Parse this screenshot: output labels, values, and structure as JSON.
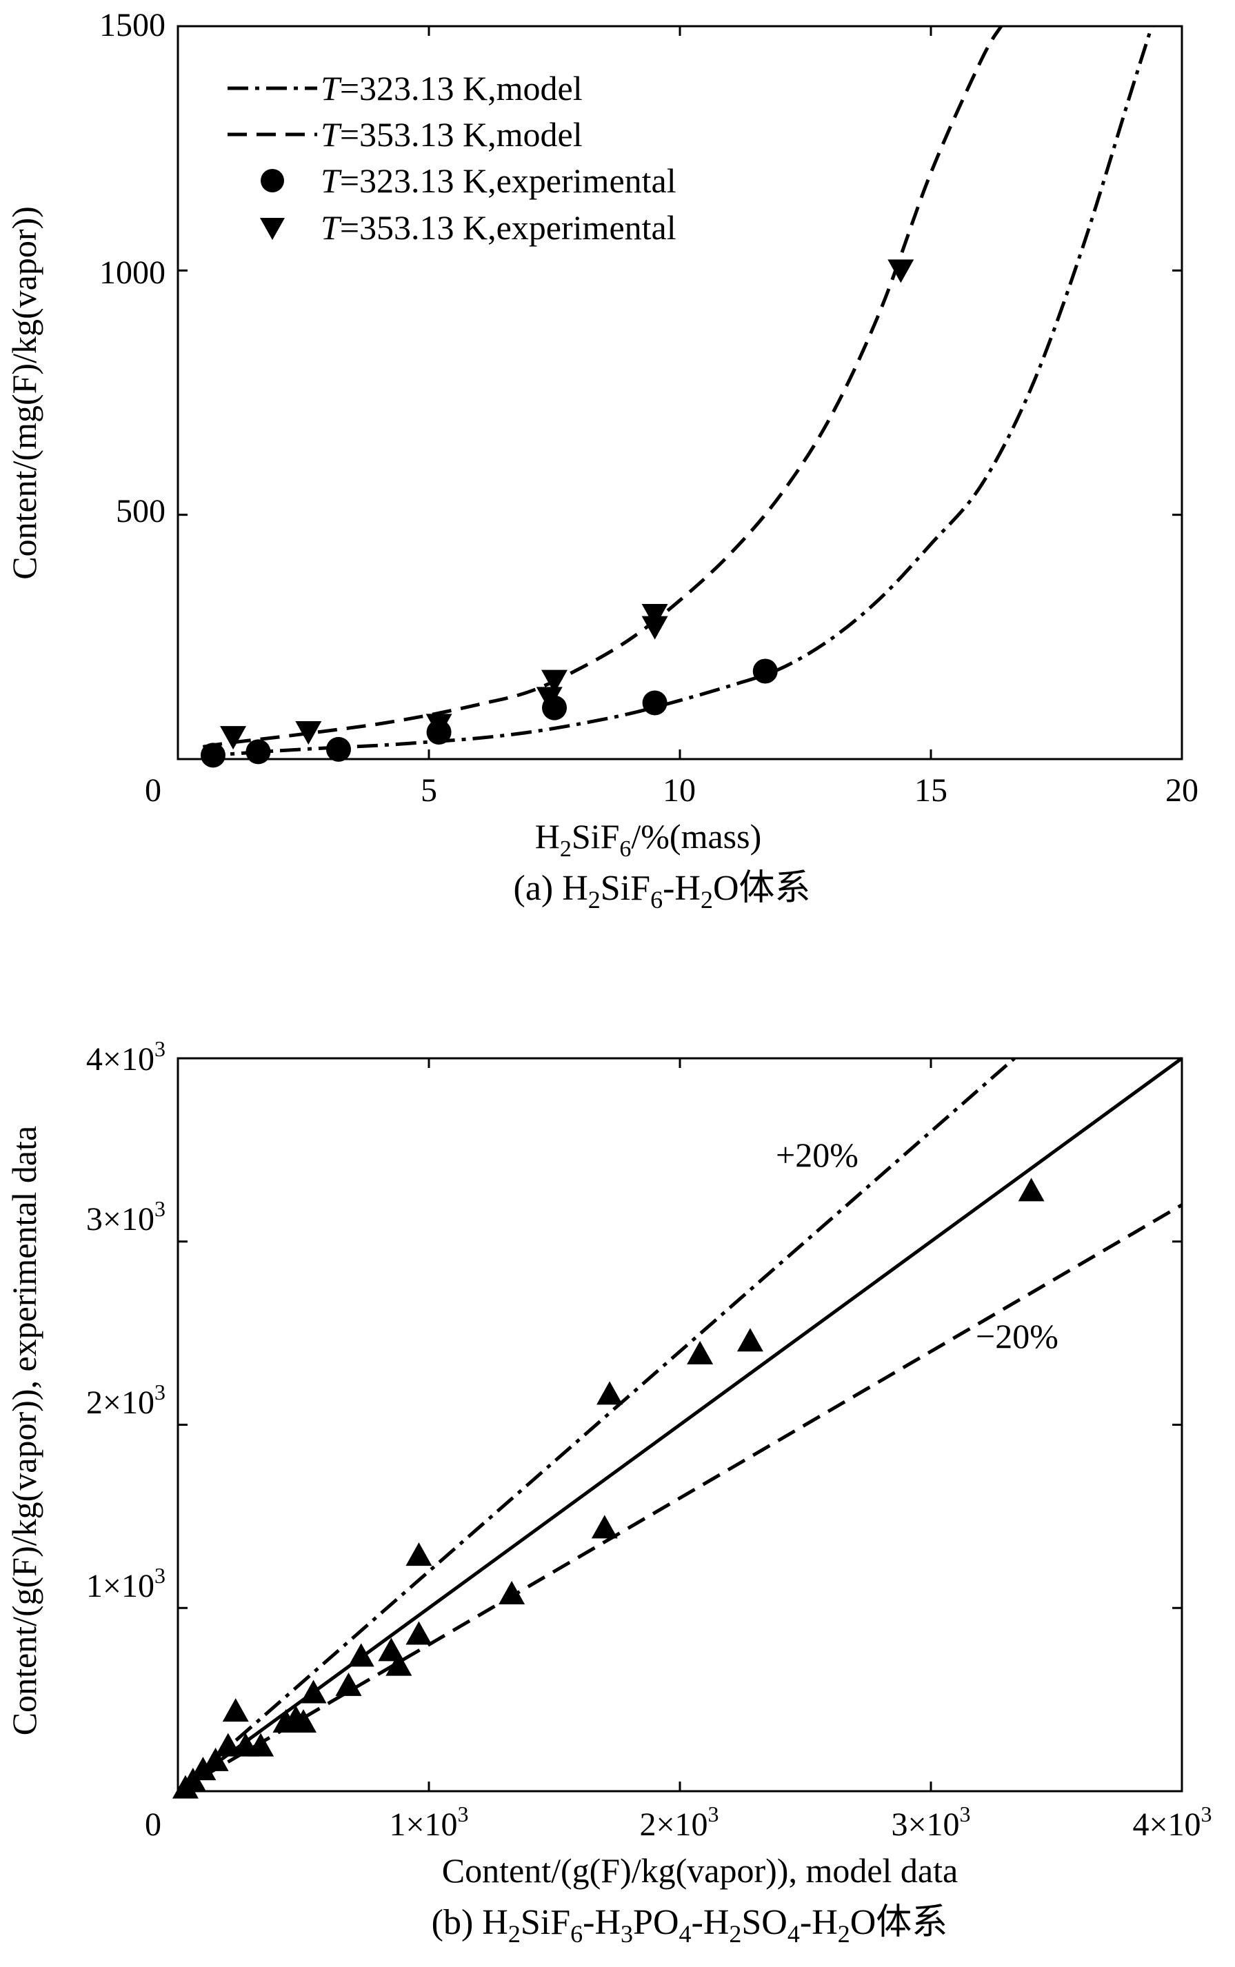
{
  "colors": {
    "ink": "#000000",
    "background": "#ffffff"
  },
  "chart_data": [
    {
      "id": "a",
      "type": "scatter",
      "caption": "(a) H₂SiF₆-H₂O体系",
      "xlabel": "H₂SiF₆/%(mass)",
      "ylabel": "Content/(mg(F)/kg(vapor))",
      "xlim": [
        0,
        20
      ],
      "ylim": [
        0,
        1500
      ],
      "xticks": [
        0,
        5,
        10,
        15,
        20
      ],
      "yticks": [
        500,
        1000,
        1500
      ],
      "xtick_labels": [
        "0",
        "5",
        "10",
        "15",
        "20"
      ],
      "ytick_labels": [
        "500",
        "1000",
        "1500"
      ],
      "legend_position": "top-left",
      "legend": [
        {
          "italic": "T",
          "text": "=323.13 K,model",
          "style": "dashdot"
        },
        {
          "italic": "T",
          "text": "=353.13 K,model",
          "style": "dashed"
        },
        {
          "italic": "T",
          "text": "=323.13 K,experimental",
          "style": "circle"
        },
        {
          "italic": "T",
          "text": "=353.13 K,experimental",
          "style": "triangle-down"
        }
      ],
      "series": [
        {
          "kind": "line",
          "style": "dashdot",
          "x": [
            0.5,
            1,
            2,
            3,
            4,
            5,
            6,
            7,
            8,
            9,
            10,
            11,
            12,
            13,
            14,
            15,
            16,
            17,
            18,
            19,
            19.4
          ],
          "y": [
            5,
            10,
            17,
            23,
            28,
            35,
            43,
            55,
            72,
            93,
            120,
            150,
            185,
            245,
            330,
            440,
            560,
            760,
            1040,
            1370,
            1500
          ]
        },
        {
          "kind": "line",
          "style": "dashed",
          "x": [
            0.5,
            1,
            2,
            3,
            4,
            5,
            6,
            7,
            8,
            9,
            10,
            11,
            12,
            13,
            14,
            15,
            16,
            16.4
          ],
          "y": [
            25,
            33,
            45,
            58,
            72,
            90,
            112,
            138,
            185,
            245,
            325,
            420,
            540,
            700,
            920,
            1200,
            1430,
            1500
          ]
        },
        {
          "kind": "points",
          "marker": "circle",
          "x": [
            0.7,
            1.6,
            3.2,
            5.2,
            7.5,
            9.5,
            11.7
          ],
          "y": [
            8,
            15,
            20,
            55,
            105,
            115,
            180
          ]
        },
        {
          "kind": "points",
          "marker": "triangle-down",
          "x": [
            1.1,
            2.6,
            5.2,
            7.4,
            7.5,
            9.5,
            9.5,
            14.4
          ],
          "y": [
            45,
            55,
            70,
            125,
            160,
            270,
            295,
            1000
          ]
        }
      ]
    },
    {
      "id": "b",
      "type": "scatter",
      "caption": "(b) H₂SiF₆-H₃PO₄-H₂SO₄-H₂O体系",
      "xlabel": "Content/(g(F)/kg(vapor)), model data",
      "ylabel": "Content/(g(F)/kg(vapor)), experimental data",
      "xlim": [
        0,
        4000
      ],
      "ylim": [
        0,
        4000
      ],
      "xticks": [
        1000,
        2000,
        3000,
        4000
      ],
      "yticks": [
        1000,
        2000,
        3000,
        4000
      ],
      "tick_label_base": "1×10",
      "tick_label_exp": "3",
      "tick_label_mantissas": [
        "1",
        "2",
        "3",
        "4"
      ],
      "origin_label": "0",
      "annotations": [
        {
          "text": "+20%"
        },
        {
          "text": "−20%"
        }
      ],
      "series": [
        {
          "kind": "line",
          "style": "solid",
          "x": [
            0,
            4000
          ],
          "y": [
            0,
            4000
          ]
        },
        {
          "kind": "line",
          "style": "dashdot",
          "x": [
            0,
            3333
          ],
          "y": [
            0,
            4000
          ]
        },
        {
          "kind": "line",
          "style": "dashed",
          "x": [
            0,
            4000
          ],
          "y": [
            0,
            3200
          ]
        },
        {
          "kind": "points",
          "marker": "triangle-up",
          "x": [
            30,
            60,
            100,
            150,
            200,
            230,
            270,
            330,
            430,
            470,
            500,
            540,
            680,
            730,
            850,
            880,
            960,
            960,
            1330,
            1700,
            1720,
            2080,
            2280,
            3400
          ],
          "y": [
            20,
            60,
            120,
            170,
            250,
            440,
            250,
            250,
            380,
            400,
            380,
            540,
            580,
            740,
            770,
            690,
            1290,
            860,
            1080,
            1440,
            2170,
            2390,
            2460,
            3280
          ]
        }
      ]
    }
  ]
}
